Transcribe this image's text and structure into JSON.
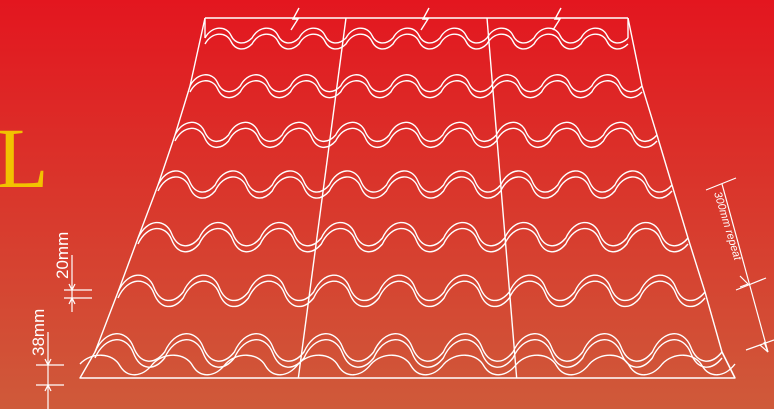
{
  "colors": {
    "bg_top": "#e3161f",
    "bg_bottom": "#cf5a3a",
    "line": "#ffffff",
    "logo": "#f2c200"
  },
  "title_fragment": "L",
  "dimensions": {
    "height_a": "20mm",
    "height_b": "38mm",
    "repeat": "300mm repeat"
  },
  "sheet": {
    "columns": 3,
    "tiers": 7,
    "waves_per_column": 3
  }
}
